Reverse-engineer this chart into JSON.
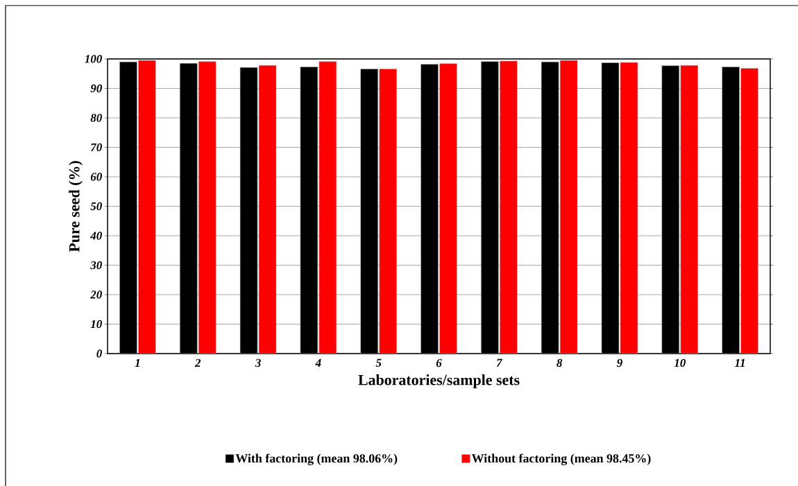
{
  "chart_data": {
    "type": "bar",
    "xlabel": "Laboratories/sample sets",
    "ylabel": "Pure seed (%)",
    "categories": [
      "1",
      "2",
      "3",
      "4",
      "5",
      "6",
      "7",
      "8",
      "9",
      "10",
      "11"
    ],
    "series": [
      {
        "name": "With factoring (mean 98.06%)",
        "color": "#000000",
        "values": [
          99.0,
          98.5,
          97.1,
          97.3,
          96.6,
          98.2,
          99.1,
          99.0,
          98.7,
          97.7,
          97.3
        ]
      },
      {
        "name": "Without factoring (mean 98.45%)",
        "color": "#ff0000",
        "values": [
          99.5,
          99.1,
          97.8,
          99.1,
          96.6,
          98.4,
          99.3,
          99.5,
          98.8,
          97.8,
          96.8
        ]
      }
    ],
    "ylim": [
      0,
      100
    ],
    "yticks": [
      0,
      10,
      20,
      30,
      40,
      50,
      60,
      70,
      80,
      90,
      100
    ],
    "grid": "y",
    "legend": "bottom"
  }
}
